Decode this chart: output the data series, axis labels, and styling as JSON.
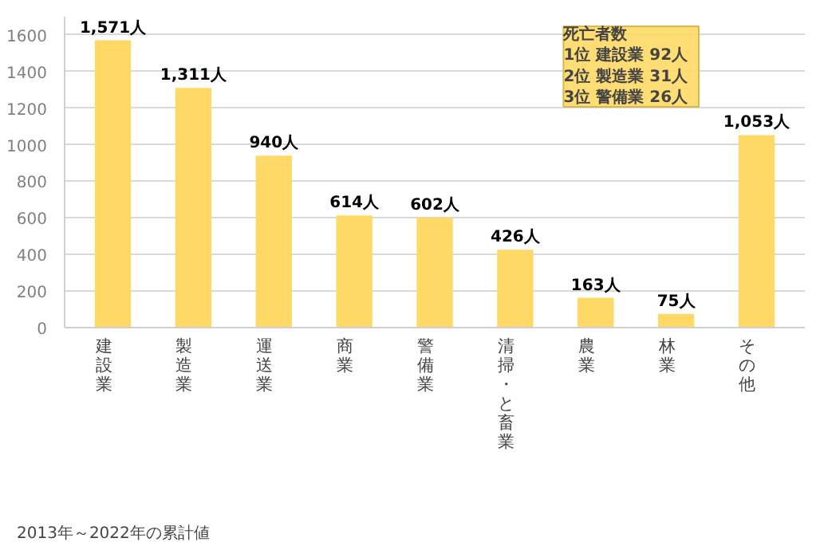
{
  "chart_data": {
    "type": "bar",
    "categories": [
      "建設業",
      "製造業",
      "運送業",
      "商業",
      "警備業",
      "清掃・と畜業",
      "農業",
      "林業",
      "その他"
    ],
    "values": [
      1571,
      1311,
      940,
      614,
      602,
      426,
      163,
      75,
      1053
    ],
    "value_labels": [
      "1,571人",
      "1,311人",
      "940人",
      "614人",
      "602人",
      "426人",
      "163人",
      "75人",
      "1,053人"
    ],
    "color": "#ffd966",
    "ylim": [
      0,
      1700
    ],
    "yticks": [
      0,
      200,
      400,
      600,
      800,
      1000,
      1200,
      1400,
      1600
    ],
    "grid": "y",
    "annotations": [
      "死亡者数\n1位  建設業  92人\n2位  製造業  31人\n3位  警備業  26人",
      "2013年～2022年の累計値"
    ]
  }
}
